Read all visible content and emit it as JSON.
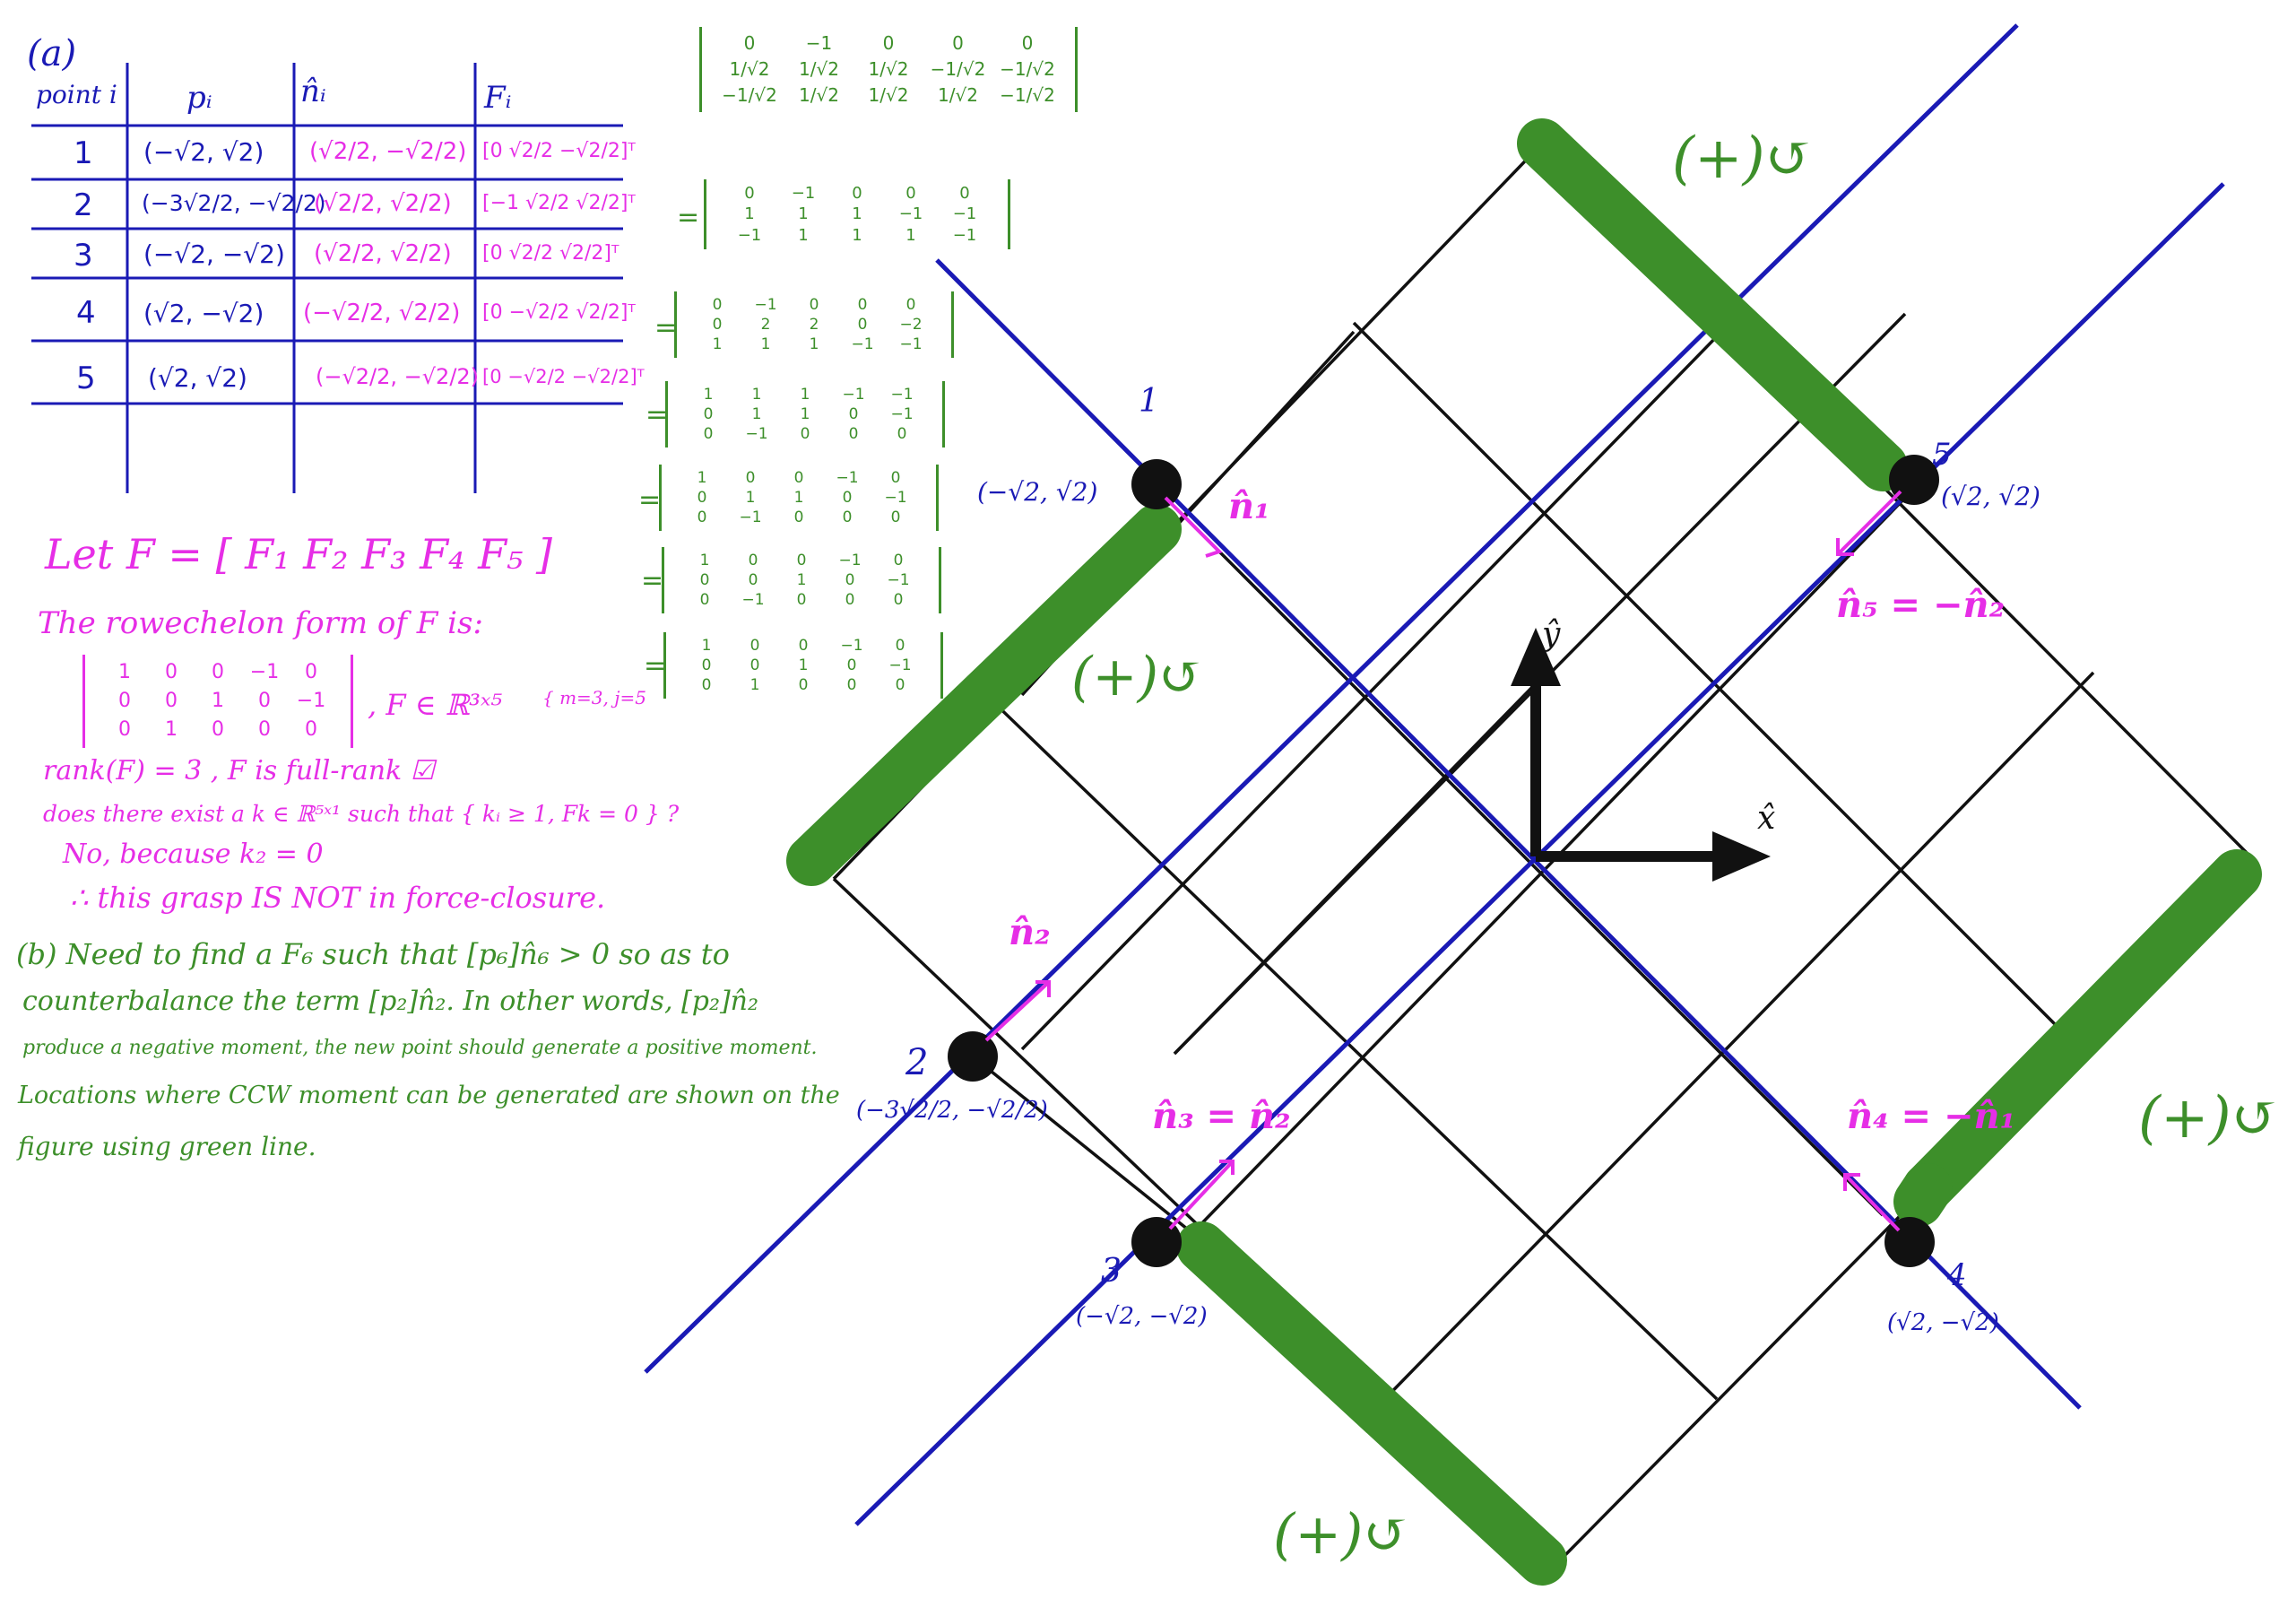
{
  "part_a": {
    "label": "(a)",
    "table": {
      "headers": [
        "point i",
        "pᵢ",
        "n̂ᵢ",
        "Fᵢ"
      ],
      "rows": [
        {
          "i": "1",
          "p": "(−√2, √2)",
          "n": "(√2/2, −√2/2)",
          "F": "[0  √2/2  −√2/2]ᵀ"
        },
        {
          "i": "2",
          "p": "(−3√2/2, −√2/2)",
          "n": "(√2/2, √2/2)",
          "F": "[−1  √2/2  √2/2]ᵀ"
        },
        {
          "i": "3",
          "p": "(−√2, −√2)",
          "n": "(√2/2, √2/2)",
          "F": "[0  √2/2  √2/2]ᵀ"
        },
        {
          "i": "4",
          "p": "(√2, −√2)",
          "n": "(−√2/2, √2/2)",
          "F": "[0  −√2/2  √2/2]ᵀ"
        },
        {
          "i": "5",
          "p": "(√2, √2)",
          "n": "(−√2/2, −√2/2)",
          "F": "[0  −√2/2  −√2/2]ᵀ"
        }
      ]
    },
    "let_line": "Let  F = [ F₁  F₂  F₃  F₄  F₅ ]",
    "rref_line": "The rowechelon form of  F  is:",
    "rref_rows": [
      [
        "1",
        "0",
        "0",
        "−1",
        "0"
      ],
      [
        "0",
        "0",
        "1",
        "0",
        "−1"
      ],
      [
        "0",
        "1",
        "0",
        "0",
        "0"
      ]
    ],
    "dims": ", F ∈ ℝ³ˣ⁵",
    "mn": "{ m=3, j=5",
    "rank_line": "rank(F) = 3 ,  F is full-rank ☑",
    "exist_line": "does there exist a  k ∈ ℝ⁵ˣ¹  such that { kᵢ ≥ 1, Fk = 0 }  ?",
    "no_line": "No, because  k₂ = 0",
    "conclusion": "∴ this grasp  IS NOT  in force-closure."
  },
  "part_b": {
    "lines": [
      "(b)  Need to find a F₆ such that [p₆]n̂₆ > 0 so as to",
      "counterbalance the term [p₂]n̂₂. In other words, [p₂]n̂₂",
      "produce a negative moment, the new point should generate a positive moment.",
      "Locations where CCW moment can be generated are shown on the",
      "figure using green line."
    ]
  },
  "matrices": [
    [
      [
        "0",
        "−1",
        "0",
        "0",
        "0"
      ],
      [
        "1/√2",
        "1/√2",
        "1/√2",
        "−1/√2",
        "−1/√2"
      ],
      [
        "−1/√2",
        "1/√2",
        "1/√2",
        "1/√2",
        "−1/√2"
      ]
    ],
    [
      [
        "0",
        "−1",
        "0",
        "0",
        "0"
      ],
      [
        "1",
        "1",
        "1",
        "−1",
        "−1"
      ],
      [
        "−1",
        "1",
        "1",
        "1",
        "−1"
      ]
    ],
    [
      [
        "0",
        "−1",
        "0",
        "0",
        "0"
      ],
      [
        "0",
        "2",
        "2",
        "0",
        "−2"
      ],
      [
        "1",
        "1",
        "1",
        "−1",
        "−1"
      ]
    ],
    [
      [
        "1",
        "1",
        "1",
        "−1",
        "−1"
      ],
      [
        "0",
        "1",
        "1",
        "0",
        "−1"
      ],
      [
        "0",
        "−1",
        "0",
        "0",
        "0"
      ]
    ],
    [
      [
        "1",
        "0",
        "0",
        "−1",
        "0"
      ],
      [
        "0",
        "1",
        "1",
        "0",
        "−1"
      ],
      [
        "0",
        "−1",
        "0",
        "0",
        "0"
      ]
    ],
    [
      [
        "1",
        "0",
        "0",
        "−1",
        "0"
      ],
      [
        "0",
        "0",
        "1",
        "0",
        "−1"
      ],
      [
        "0",
        "−1",
        "0",
        "0",
        "0"
      ]
    ],
    [
      [
        "1",
        "0",
        "0",
        "−1",
        "0"
      ],
      [
        "0",
        "0",
        "1",
        "0",
        "−1"
      ],
      [
        "0",
        "1",
        "0",
        "0",
        "0"
      ]
    ]
  ],
  "equals": "=",
  "figure": {
    "point_labels": [
      {
        "num": "1",
        "coord": "(−√2, √2)"
      },
      {
        "num": "2",
        "coord": "(−3√2/2, −√2/2)"
      },
      {
        "num": "3",
        "coord": "(−√2, −√2)"
      },
      {
        "num": "4",
        "coord": "(√2, −√2)"
      },
      {
        "num": "5",
        "coord": "(√2, √2)"
      }
    ],
    "normal_labels": [
      "n̂₁",
      "n̂₂",
      "n̂₃ = n̂₂",
      "n̂₄ = −n̂₁",
      "n̂₅ = −n̂₂"
    ],
    "axis_x": "x̂",
    "axis_y": "ŷ",
    "ccw_label": "(+)↺"
  },
  "colors": {
    "blue": "#1a1ab5",
    "magenta": "#e62ee6",
    "green": "#3d8f2a",
    "black": "#111111"
  }
}
